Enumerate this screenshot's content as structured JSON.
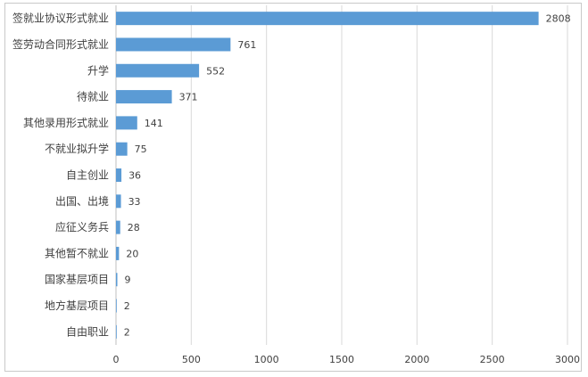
{
  "chart_data": {
    "type": "bar",
    "orientation": "horizontal",
    "categories": [
      "签就业协议形式就业",
      "签劳动合同形式就业",
      "升学",
      "待就业",
      "其他录用形式就业",
      "不就业拟升学",
      "自主创业",
      "出国、出境",
      "应征义务兵",
      "其他暂不就业",
      "国家基层项目",
      "地方基层项目",
      "自由职业"
    ],
    "values": [
      2808,
      761,
      552,
      371,
      141,
      75,
      36,
      33,
      28,
      20,
      9,
      2,
      2
    ],
    "xlim": [
      0,
      3000
    ],
    "xticks": [
      0,
      500,
      1000,
      1500,
      2000,
      2500,
      3000
    ],
    "title": "",
    "xlabel": "",
    "ylabel": "",
    "grid": "vertical",
    "legend": "none",
    "bar_color": "#5b9bd5",
    "grid_color": "#d9d9d9"
  }
}
